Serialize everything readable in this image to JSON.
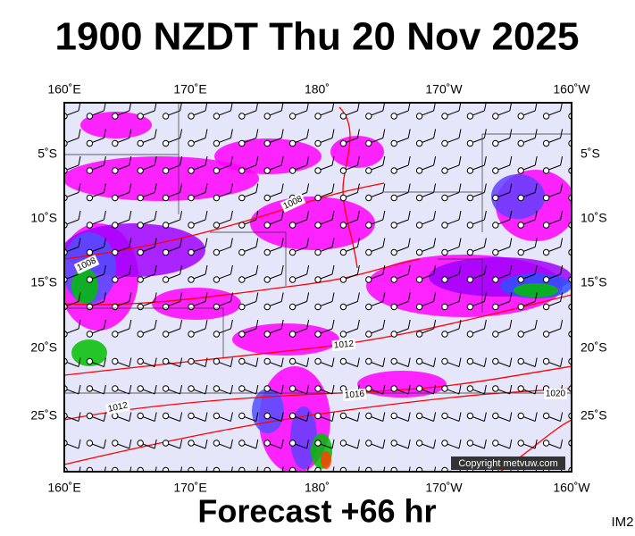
{
  "title": "1900 NZDT Thu 20 Nov 2025",
  "lon_labels": [
    "160˚E",
    "170˚E",
    "180˚",
    "170˚W",
    "160˚W"
  ],
  "lat_labels": [
    "5˚S",
    "10˚S",
    "15˚S",
    "20˚S",
    "25˚S"
  ],
  "isobar_labels": [
    "1008",
    "1008",
    "1012",
    "1012",
    "1016",
    "1020"
  ],
  "copyright": "Copyright metvuw.com",
  "footer": "Forecast +66 hr",
  "image_id": "IM2"
}
